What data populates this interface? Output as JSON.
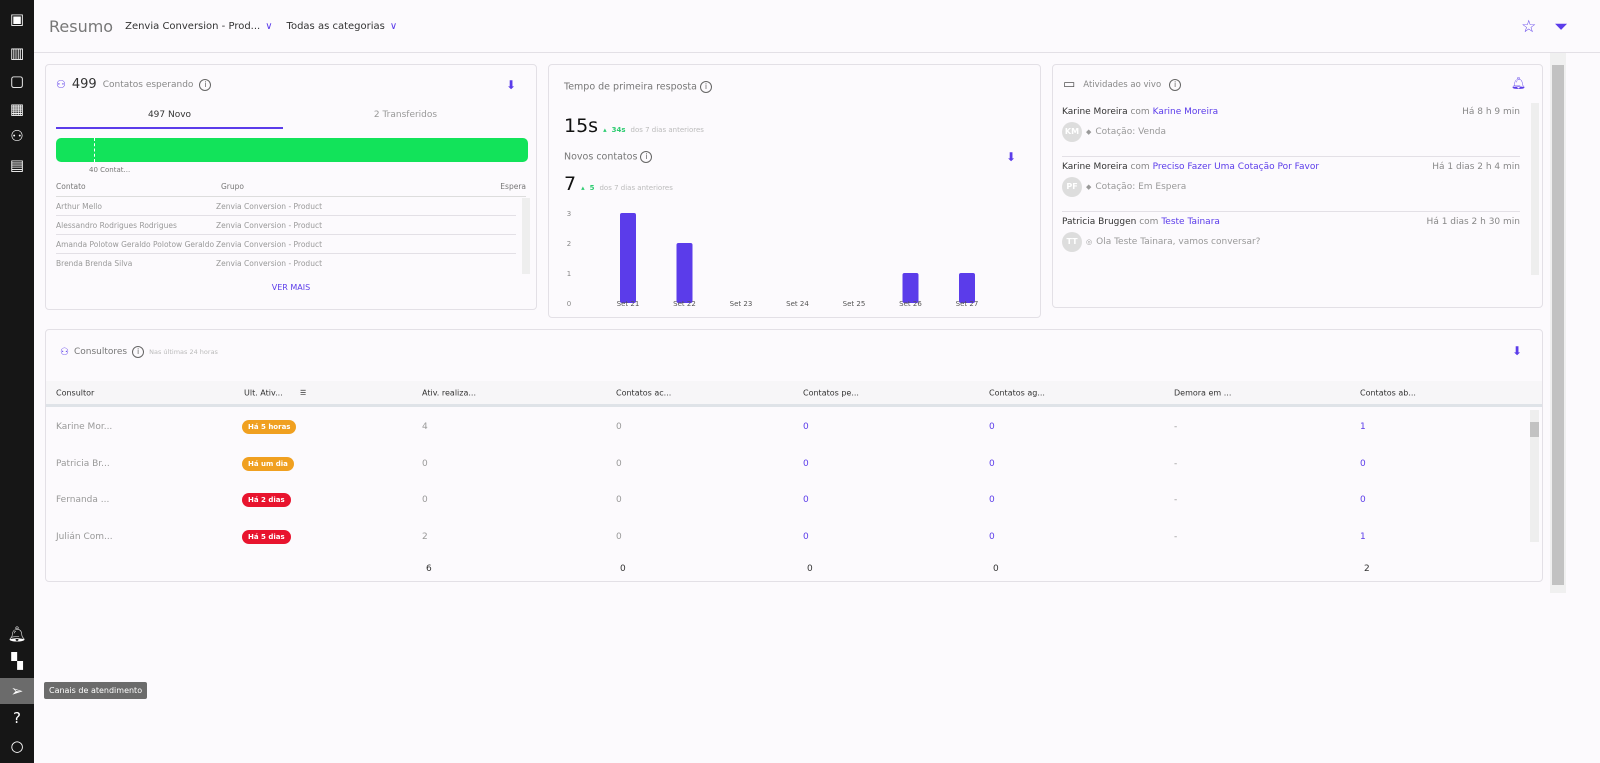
{
  "sidebar": {
    "items": [
      {
        "icon": "logo-icon"
      },
      {
        "icon": "chart-icon"
      },
      {
        "icon": "chat-icon"
      },
      {
        "icon": "table-icon"
      },
      {
        "icon": "users-icon"
      },
      {
        "icon": "document-icon"
      },
      {
        "icon": "bell-icon"
      },
      {
        "icon": "apps-icon"
      },
      {
        "icon": "send-icon",
        "tooltip": "Canais de atendimento"
      },
      {
        "icon": "help-icon"
      },
      {
        "icon": "status-icon"
      }
    ]
  },
  "header": {
    "title": "Resumo",
    "group_filter": "Zenvia Conversion - Prod...",
    "category_filter": "Todas as categorias"
  },
  "waiting": {
    "count": "499",
    "label": "Contatos esperando",
    "tabs": [
      {
        "label": "497 Novo",
        "active": true
      },
      {
        "label": "2 Transferidos"
      }
    ],
    "bar_marker_label": "40 Contat...",
    "bar_color": "#12e35a",
    "columns": [
      "Contato",
      "Grupo",
      "Espera"
    ],
    "rows": [
      {
        "contact": "Arthur Mello",
        "group": "Zenvia Conversion - Product"
      },
      {
        "contact": "Alessandro Rodrigues Rodrigues",
        "group": "Zenvia Conversion - Product"
      },
      {
        "contact": "Amanda Polotow Geraldo Polotow Geraldo",
        "group": "Zenvia Conversion - Product"
      },
      {
        "contact": "Brenda Brenda Silva",
        "group": "Zenvia Conversion - Product"
      }
    ],
    "more": "VER MAIS"
  },
  "response": {
    "label": "Tempo de primeira resposta",
    "value": "15s",
    "delta": "34s",
    "delta_text": "dos 7 dias anteriores"
  },
  "new_contacts": {
    "label": "Novos contatos",
    "value": "7",
    "delta": "5",
    "delta_text": "dos 7 dias anteriores"
  },
  "chart_data": {
    "type": "bar",
    "categories": [
      "Set 21",
      "Set 22",
      "Set 23",
      "Set 24",
      "Set 25",
      "Set 26",
      "Set 27"
    ],
    "values": [
      3,
      2,
      0,
      0,
      0,
      1,
      1
    ],
    "yticks": [
      "0",
      "1",
      "2",
      "3"
    ],
    "ylim": [
      0,
      3.2
    ],
    "color": "#5b3cea"
  },
  "live": {
    "label": "Atividades ao vivo",
    "connector": "com",
    "items": [
      {
        "agent": "Karine Moreira",
        "contact": "Karine Moreira",
        "time": "Há 8 h 9 min",
        "initials": "KM",
        "icon": "tag-icon",
        "detail": "Cotação: Venda"
      },
      {
        "agent": "Karine Moreira",
        "contact": "Preciso Fazer Uma Cotação Por Favor",
        "time": "Há 1 dias 2 h 4 min",
        "initials": "PF",
        "icon": "tag-icon",
        "detail": "Cotação: Em Espera"
      },
      {
        "agent": "Patricia Bruggen",
        "contact": "Teste Tainara",
        "time": "Há 1 dias 2 h 30 min",
        "initials": "TT",
        "icon": "whatsapp-icon",
        "detail": "Ola Teste Tainara, vamos conversar?"
      }
    ]
  },
  "consultants": {
    "label": "Consultores",
    "subtitle": "Nas últimas 24 horas",
    "columns": [
      "Consultor",
      "Ult. Ativ...",
      "Ativ. realiza...",
      "Contatos ac...",
      "Contatos pe...",
      "Contatos ag...",
      "Demora em ...",
      "Contatos ab..."
    ],
    "rows": [
      {
        "name": "Karine Mor...",
        "badge": "Há 5 horas",
        "badge_color": "#f0a020",
        "v": [
          "4",
          "0",
          "0",
          "0",
          "-",
          "1"
        ]
      },
      {
        "name": "Patricia Br...",
        "badge": "Há um dia",
        "badge_color": "#f0a020",
        "v": [
          "0",
          "0",
          "0",
          "0",
          "-",
          "0"
        ]
      },
      {
        "name": "Fernanda ...",
        "badge": "Há 2 dias",
        "badge_color": "#e8142e",
        "v": [
          "0",
          "0",
          "0",
          "0",
          "-",
          "0"
        ]
      },
      {
        "name": "Julián Com...",
        "badge": "Há 5 dias",
        "badge_color": "#e8142e",
        "v": [
          "2",
          "0",
          "0",
          "0",
          "-",
          "1"
        ]
      }
    ],
    "totals": [
      "6",
      "0",
      "0",
      "0",
      "",
      "2"
    ]
  },
  "colors": {
    "accent": "#5b3cea",
    "positive": "#2ecc71"
  }
}
